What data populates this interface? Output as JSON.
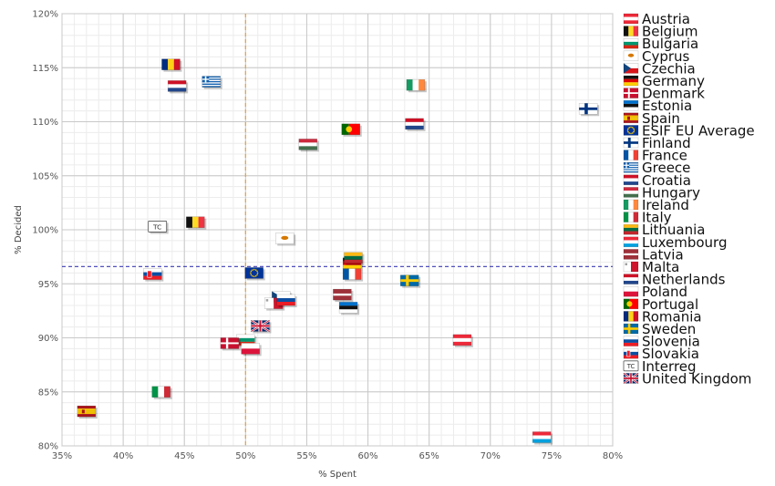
{
  "chart_data": {
    "type": "scatter",
    "title": "",
    "xlabel": "% Spent",
    "ylabel": "% Decided",
    "xlim": [
      35,
      80
    ],
    "ylim": [
      80,
      120
    ],
    "x_ticks": [
      35,
      40,
      45,
      50,
      55,
      60,
      65,
      70,
      75,
      80
    ],
    "y_ticks": [
      80,
      85,
      90,
      95,
      100,
      105,
      110,
      115,
      120
    ],
    "x_tick_labels": [
      "35%",
      "40%",
      "45%",
      "50%",
      "55%",
      "60%",
      "65%",
      "70%",
      "75%",
      "80%"
    ],
    "y_tick_labels": [
      "80%",
      "85%",
      "90%",
      "95%",
      "100%",
      "105%",
      "110%",
      "115%",
      "120%"
    ],
    "reference_lines": {
      "x": 50,
      "y": 96.6
    },
    "grid": true,
    "legend_position": "right",
    "series": [
      {
        "name": "Austria",
        "x": 67.7,
        "y": 89.8,
        "flag": "h-red-white-red"
      },
      {
        "name": "Belgium",
        "x": 45.9,
        "y": 100.7,
        "flag": "v-black-yellow-red"
      },
      {
        "name": "Bulgaria",
        "x": 50.0,
        "y": 89.8,
        "flag": "h-white-green-red"
      },
      {
        "name": "Cyprus",
        "x": 53.2,
        "y": 99.2,
        "flag": "cyprus"
      },
      {
        "name": "Czechia",
        "x": 52.9,
        "y": 93.8,
        "flag": "czechia"
      },
      {
        "name": "Germany",
        "x": 58.7,
        "y": 96.9,
        "flag": "h-black-red-gold"
      },
      {
        "name": "Denmark",
        "x": 48.7,
        "y": 89.5,
        "flag": "nordic-red-white"
      },
      {
        "name": "Estonia",
        "x": 58.4,
        "y": 92.8,
        "flag": "h-blue-black-white"
      },
      {
        "name": "Spain",
        "x": 37.0,
        "y": 83.2,
        "flag": "spain"
      },
      {
        "name": "ESIF EU Average",
        "x": 50.7,
        "y": 96.0,
        "flag": "eu"
      },
      {
        "name": "Finland",
        "x": 78.0,
        "y": 111.2,
        "flag": "nordic-white-blue"
      },
      {
        "name": "France",
        "x": 58.7,
        "y": 95.9,
        "flag": "v-blue-white-red"
      },
      {
        "name": "Greece",
        "x": 47.2,
        "y": 113.7,
        "flag": "greece"
      },
      {
        "name": "Croatia",
        "x": 44.4,
        "y": 113.3,
        "flag": "h-red-white-blue"
      },
      {
        "name": "Hungary",
        "x": 55.1,
        "y": 107.9,
        "flag": "h-red-white-green"
      },
      {
        "name": "Ireland",
        "x": 63.9,
        "y": 113.4,
        "flag": "v-green-white-orange"
      },
      {
        "name": "Italy",
        "x": 43.1,
        "y": 85.0,
        "flag": "v-green-white-red"
      },
      {
        "name": "Lithuania",
        "x": 58.8,
        "y": 97.4,
        "flag": "h-yellow-green-red"
      },
      {
        "name": "Luxembourg",
        "x": 74.2,
        "y": 80.8,
        "flag": "h-red-white-lightblue"
      },
      {
        "name": "Latvia",
        "x": 57.9,
        "y": 94.0,
        "flag": "latvia"
      },
      {
        "name": "Malta",
        "x": 52.3,
        "y": 93.2,
        "flag": "malta"
      },
      {
        "name": "Netherlands",
        "x": 63.8,
        "y": 109.8,
        "flag": "h-red-white-blue"
      },
      {
        "name": "Poland",
        "x": 50.4,
        "y": 89.0,
        "flag": "h-white-red"
      },
      {
        "name": "Portugal",
        "x": 58.6,
        "y": 109.3,
        "flag": "portugal"
      },
      {
        "name": "Romania",
        "x": 43.9,
        "y": 115.3,
        "flag": "v-blue-yellow-red"
      },
      {
        "name": "Sweden",
        "x": 63.4,
        "y": 95.3,
        "flag": "sweden"
      },
      {
        "name": "Slovenia",
        "x": 53.3,
        "y": 93.5,
        "flag": "h-white-blue-red"
      },
      {
        "name": "Slovakia",
        "x": 42.4,
        "y": 95.9,
        "flag": "slovakia"
      },
      {
        "name": "Interreg",
        "x": 42.8,
        "y": 100.3,
        "flag": "tc"
      },
      {
        "name": "United Kingdom",
        "x": 51.2,
        "y": 91.1,
        "flag": "uk"
      }
    ],
    "legend_labels": [
      "Austria",
      "Belgium",
      "Bulgaria",
      "Cyprus",
      "Czechia",
      "Germany",
      "Denmark",
      "Estonia",
      "Spain",
      "ESIF EU Average",
      "Finland",
      "France",
      "Greece",
      "Croatia",
      "Hungary",
      "Ireland",
      "Italy",
      "Lithuania",
      "Luxembourg",
      "Latvia",
      "Malta",
      "Netherlands",
      "Poland",
      "Portugal",
      "Romania",
      "Sweden",
      "Slovenia",
      "Slovakia",
      "Interreg",
      "United Kingdom"
    ],
    "interreg_badge": "TC"
  }
}
